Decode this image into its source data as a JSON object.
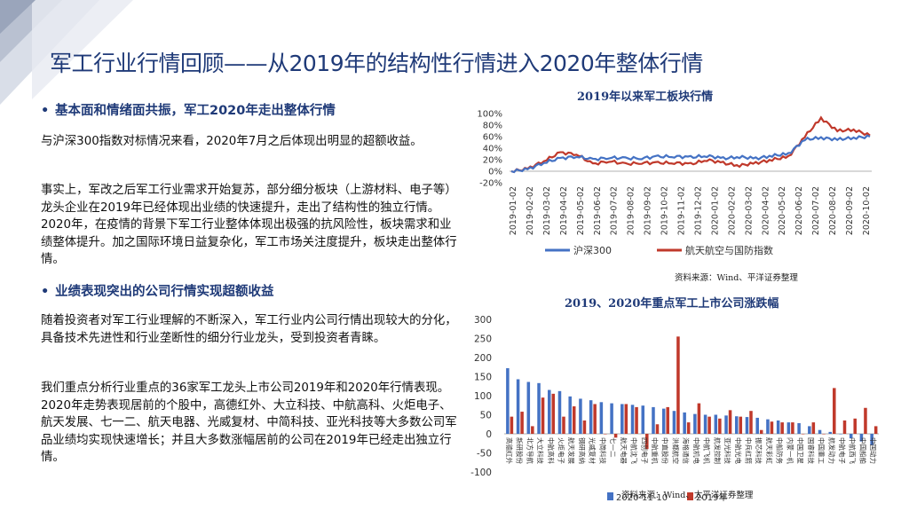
{
  "slide": {
    "title": "军工行业行情回顾——从2019年的结构性行情进入2020年整体行情",
    "section1": {
      "heading": "基本面和情绪面共振，军工2020年走出整体行情",
      "para1": "与沪深300指数对标情况来看，2020年7月之后体现出明显的超额收益。",
      "para2": "事实上，军改之后军工行业需求开始复苏，部分细分板块（上游材料、电子等）龙头企业在2019年已经体现出业绩的快速提升，走出了结构性的独立行情。2020年，在疫情的背景下军工行业整体体现出极强的抗风险性，板块需求和业绩整体提升。加之国际环境日益复杂化，军工市场关注度提升，板块走出整体行情。"
    },
    "section2": {
      "heading": "业绩表现突出的公司行情实现超额收益",
      "para1": "随着投资者对军工行业理解的不断深入，军工行业内公司行情出现较大的分化，具备技术先进性和行业垄断性的细分行业龙头，受到投资者青睐。",
      "para2": "我们重点分析行业重点的36家军工龙头上市公司2019年和2020年行情表现。2020年走势表现居前的个股中，高德红外、大立科技、中航高科、火炬电子、航天发展、七一二、航天电器、光威复材、中简科技、亚光科技等大多数公司军品业绩均实现快速增长；并且大多数涨幅居前的公司在2019年已经走出独立行情。"
    },
    "bullet_symbol": "•"
  },
  "chart_data": [
    {
      "type": "line",
      "title": "2019年以来军工板块行情",
      "source": "资料来源：Wind、平洋证券整理",
      "yticks": [
        "100%",
        "80%",
        "60%",
        "40%",
        "20%",
        "0%",
        "-20%"
      ],
      "ylim": [
        -20,
        100
      ],
      "xticks": [
        "2019-01-02",
        "2019-02-02",
        "2019-03-02",
        "2019-04-02",
        "2019-05-02",
        "2019-06-02",
        "2019-07-02",
        "2019-08-02",
        "2019-09-02",
        "2019-10-02",
        "2019-11-02",
        "2019-12-02",
        "2020-01-02",
        "2020-02-02",
        "2020-03-02",
        "2020-04-02",
        "2020-05-02",
        "2020-06-02",
        "2020-07-02",
        "2020-08-02",
        "2020-09-02",
        "2020-10-02"
      ],
      "series": [
        {
          "name": "沪深300",
          "color": "#4472c4",
          "values": [
            0,
            3,
            15,
            22,
            26,
            20,
            24,
            22,
            23,
            25,
            26,
            24,
            27,
            22,
            25,
            22,
            27,
            30,
            55,
            58,
            55,
            58,
            60
          ]
        },
        {
          "name": "航天航空与国防指数",
          "color": "#c0392b",
          "values": [
            0,
            4,
            18,
            32,
            30,
            12,
            18,
            12,
            15,
            14,
            15,
            12,
            20,
            14,
            10,
            14,
            20,
            25,
            60,
            92,
            70,
            72,
            62
          ]
        }
      ]
    },
    {
      "type": "bar",
      "title": "2019、2020年重点军工上市公司涨跌幅",
      "source": "资料来源：Wind、太平洋证券整理",
      "yticks": [
        "300",
        "250",
        "200",
        "150",
        "100",
        "50",
        "0",
        "-50",
        "-100"
      ],
      "ylim": [
        -100,
        300
      ],
      "categories": [
        "高德红外",
        "新研股份",
        "北方导航",
        "大立科技",
        "中航高科",
        "火炬电子",
        "航天发展",
        "钢研高纳",
        "光威复材",
        "中简科技",
        "七一二",
        "航天电器",
        "中航沈飞",
        "四创电子",
        "中航重机",
        "中直股份",
        "洪都航空",
        "海格通信",
        "中航机电",
        "中航飞机",
        "航发控制",
        "亚光科技",
        "中航光电",
        "中兵红箭",
        "振芯科技",
        "航天彩虹",
        "中船防务",
        "内蒙一机",
        "中国卫星",
        "国睿科技",
        "中国重工",
        "航发动力",
        "中航电子",
        "中航西飞",
        "中国船舶",
        "中国动力"
      ],
      "series": [
        {
          "name": "2020-11-10",
          "color": "#4472c4",
          "values": [
            172,
            143,
            136,
            133,
            115,
            112,
            98,
            92,
            88,
            83,
            80,
            78,
            76,
            74,
            70,
            66,
            60,
            56,
            52,
            50,
            50,
            48,
            46,
            44,
            42,
            38,
            35,
            30,
            28,
            20,
            10,
            5,
            0,
            -12,
            -20,
            -30
          ]
        },
        {
          "name": "2019年",
          "color": "#c0392b",
          "values": [
            45,
            58,
            20,
            95,
            105,
            45,
            72,
            35,
            78,
            0,
            -10,
            78,
            70,
            -40,
            25,
            70,
            255,
            30,
            80,
            45,
            40,
            62,
            45,
            60,
            10,
            32,
            30,
            30,
            0,
            30,
            0,
            120,
            35,
            40,
            68,
            20
          ]
        }
      ],
      "legend": [
        "2020-11-10",
        "2019年"
      ]
    }
  ]
}
